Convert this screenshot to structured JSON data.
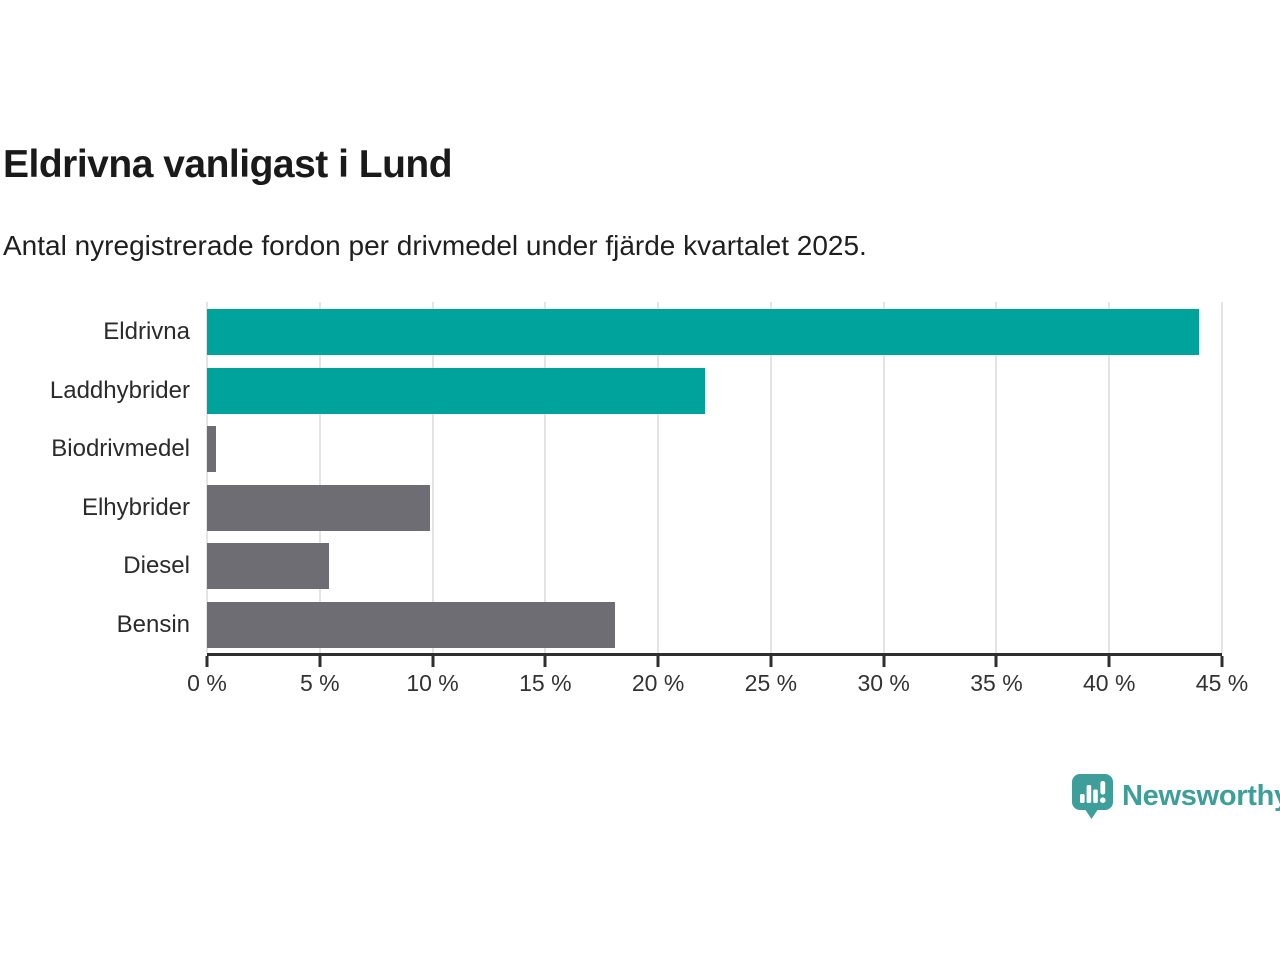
{
  "header": {
    "title": "Eldrivna vanligast i Lund",
    "subtitle": "Antal nyregistrerade fordon per drivmedel under fjärde kvartalet 2025."
  },
  "colors": {
    "teal": "#00a39b",
    "gray": "#6e6d73",
    "logo_teal": "#3d9e9a",
    "axis": "#2f2f2f",
    "gridline": "#e4e4e4",
    "text": "#1a1a1a"
  },
  "chart_data": {
    "type": "bar",
    "orientation": "horizontal",
    "title": "Eldrivna vanligast i Lund",
    "subtitle": "Antal nyregistrerade fordon per drivmedel under fjärde kvartalet 2025.",
    "categories": [
      "Eldrivna",
      "Laddhybrider",
      "Biodrivmedel",
      "Elhybrider",
      "Diesel",
      "Bensin"
    ],
    "values": [
      44.0,
      22.1,
      0.4,
      9.9,
      5.4,
      18.1
    ],
    "unit": "%",
    "bar_colors": [
      "#00a39b",
      "#00a39b",
      "#6e6d73",
      "#6e6d73",
      "#6e6d73",
      "#6e6d73"
    ],
    "xlim": [
      0,
      45
    ],
    "x_ticks": [
      0,
      5,
      10,
      15,
      20,
      25,
      30,
      35,
      40,
      45
    ],
    "x_tick_labels": [
      "0 %",
      "5 %",
      "10 %",
      "15 %",
      "20 %",
      "25 %",
      "30 %",
      "35 %",
      "40 %",
      "45 %"
    ],
    "grid": true,
    "legend": false
  },
  "footer": {
    "brand": "Newsworthy"
  }
}
